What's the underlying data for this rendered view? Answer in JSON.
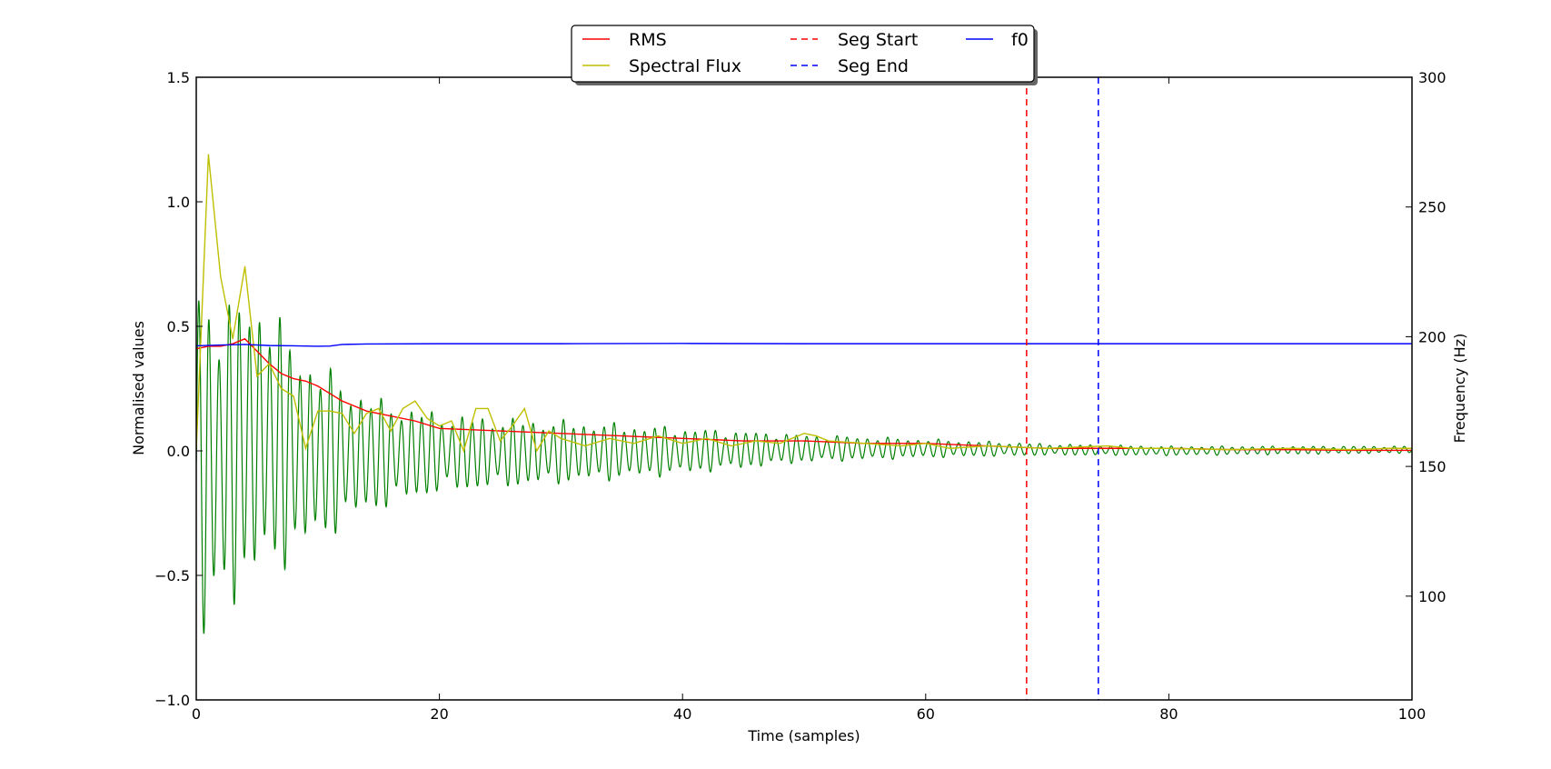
{
  "chart_data": {
    "type": "line",
    "title": "",
    "xlabel": "Time (samples)",
    "ylabel": "Normalised values",
    "y2label": "Frequency (Hz)",
    "xlim": [
      0,
      100
    ],
    "ylim": [
      -1.0,
      1.5
    ],
    "y2lim": [
      60,
      300
    ],
    "xticks": [
      "0",
      "20",
      "40",
      "60",
      "80",
      "100"
    ],
    "yticks": [
      "−1.0",
      "−0.5",
      "0.0",
      "0.5",
      "1.0",
      "1.5"
    ],
    "y2ticks": [
      "100",
      "150",
      "200",
      "250",
      "300"
    ],
    "grid": false,
    "legend_position": "top-center",
    "legend": [
      {
        "label": "RMS",
        "color": "#ff0000",
        "style": "solid"
      },
      {
        "label": "Spectral Flux",
        "color": "#bfbf00",
        "style": "solid"
      },
      {
        "label": "f0",
        "color": "#0000ff",
        "style": "solid"
      },
      {
        "label": "Seg Start",
        "color": "#ff0000",
        "style": "dashed"
      },
      {
        "label": "Seg End",
        "color": "#0000ff",
        "style": "dashed"
      }
    ],
    "waveform": {
      "color": "#008000",
      "envelope_t": [
        0,
        1,
        2,
        3,
        4,
        5,
        6,
        7,
        8,
        10,
        12,
        15,
        20,
        25,
        30,
        40,
        50,
        60,
        70,
        80,
        100
      ],
      "envelope_top": [
        0.78,
        0.68,
        0.65,
        0.65,
        0.64,
        0.66,
        0.65,
        0.55,
        0.45,
        0.38,
        0.3,
        0.22,
        0.16,
        0.14,
        0.13,
        0.1,
        0.07,
        0.05,
        0.03,
        0.02,
        0.02
      ],
      "envelope_bottom": [
        -0.88,
        -0.82,
        -0.68,
        -0.65,
        -0.58,
        -0.55,
        -0.55,
        -0.5,
        -0.45,
        -0.4,
        -0.32,
        -0.25,
        -0.18,
        -0.16,
        -0.14,
        -0.1,
        -0.05,
        -0.03,
        -0.02,
        -0.02,
        -0.01
      ],
      "cycles_per_sample": 1.2
    },
    "series": [
      {
        "name": "RMS",
        "color": "#ff0000",
        "axis": "left",
        "x": [
          0,
          1,
          2,
          3,
          4,
          5,
          6,
          7,
          8,
          9,
          10,
          12,
          14,
          16,
          18,
          20,
          25,
          30,
          35,
          40,
          45,
          50,
          55,
          60,
          65,
          70,
          75,
          80,
          85,
          90,
          95,
          100
        ],
        "y": [
          0.41,
          0.42,
          0.42,
          0.43,
          0.45,
          0.4,
          0.35,
          0.31,
          0.29,
          0.28,
          0.26,
          0.2,
          0.16,
          0.14,
          0.12,
          0.09,
          0.08,
          0.07,
          0.06,
          0.05,
          0.04,
          0.04,
          0.03,
          0.03,
          0.02,
          0.01,
          0.01,
          0.01,
          0.005,
          0.005,
          0.002,
          0.002
        ]
      },
      {
        "name": "Spectral Flux",
        "color": "#bfbf00",
        "axis": "left",
        "x": [
          0,
          1,
          2,
          3,
          4,
          5,
          6,
          7,
          8,
          9,
          10,
          11,
          12,
          13,
          14,
          15,
          16,
          17,
          18,
          19,
          20,
          21,
          22,
          23,
          24,
          25,
          26,
          27,
          28,
          29,
          30,
          32,
          34,
          36,
          38,
          40,
          42,
          44,
          46,
          48,
          50,
          51,
          52,
          55,
          58,
          60,
          62,
          65,
          70,
          75,
          77,
          80,
          85,
          90,
          95,
          98,
          100
        ],
        "y": [
          0.0,
          1.19,
          0.7,
          0.45,
          0.74,
          0.3,
          0.35,
          0.25,
          0.22,
          0.01,
          0.16,
          0.16,
          0.15,
          0.07,
          0.15,
          0.17,
          0.08,
          0.17,
          0.2,
          0.13,
          0.1,
          0.12,
          0.0,
          0.17,
          0.17,
          0.04,
          0.1,
          0.17,
          0.0,
          0.08,
          0.05,
          0.02,
          0.05,
          0.03,
          0.06,
          0.03,
          0.05,
          0.02,
          0.04,
          0.03,
          0.07,
          0.06,
          0.04,
          0.03,
          0.02,
          0.03,
          0.01,
          0.02,
          0.01,
          0.02,
          0.01,
          0.01,
          0.005,
          0.01,
          0.005,
          0.01,
          0.01
        ]
      },
      {
        "name": "f0",
        "color": "#0000ff",
        "axis": "right",
        "x": [
          0,
          2,
          4,
          6,
          8,
          10,
          11,
          12,
          14,
          20,
          30,
          40,
          50,
          60,
          70,
          80,
          90,
          100
        ],
        "y": [
          196.5,
          196.8,
          197.0,
          196.6,
          196.5,
          196.3,
          196.4,
          197.0,
          197.2,
          197.3,
          197.3,
          197.4,
          197.3,
          197.3,
          197.3,
          197.3,
          197.3,
          197.3
        ]
      }
    ],
    "vlines": [
      {
        "name": "Seg Start",
        "x": 68.3,
        "color": "#ff0000"
      },
      {
        "name": "Seg End",
        "x": 74.2,
        "color": "#0000ff"
      }
    ]
  }
}
